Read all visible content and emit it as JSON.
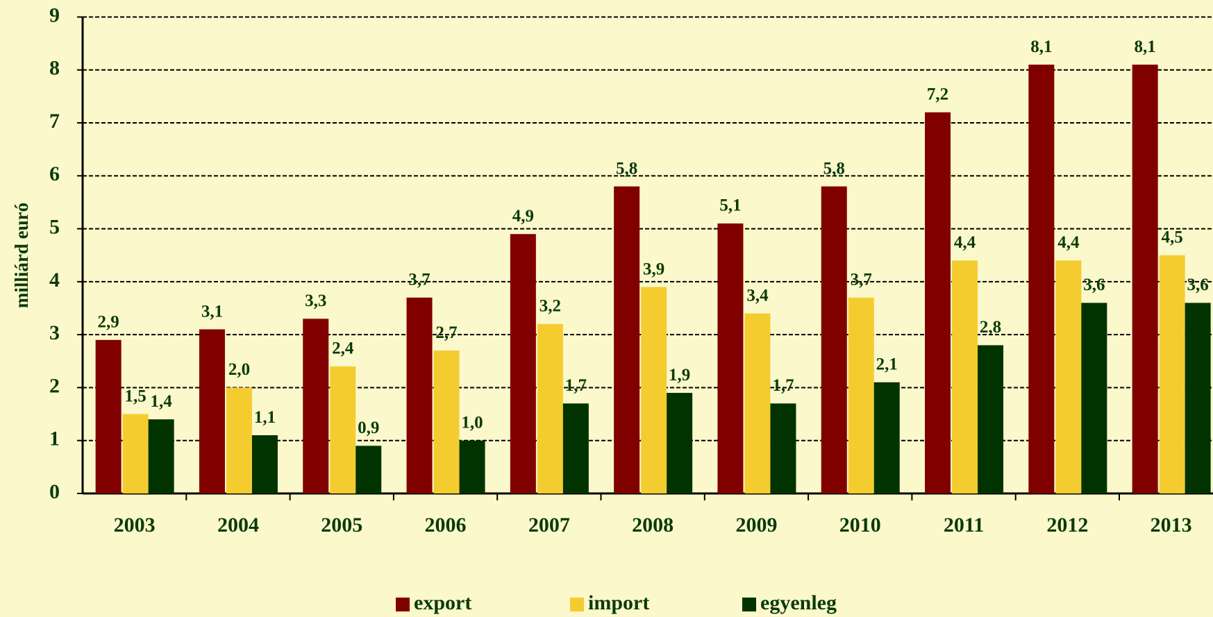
{
  "chart_data": {
    "type": "bar",
    "categories": [
      "2003",
      "2004",
      "2005",
      "2006",
      "2007",
      "2008",
      "2009",
      "2010",
      "2011",
      "2012",
      "2013"
    ],
    "y_label": "milliárd euró",
    "series": [
      {
        "name": "export",
        "color": "#800000",
        "values": [
          2.9,
          3.1,
          3.3,
          3.7,
          4.9,
          5.8,
          5.1,
          5.8,
          7.2,
          8.1,
          8.1
        ],
        "value_labels": [
          "2,9",
          "3,1",
          "3,3",
          "3,7",
          "4,9",
          "5,8",
          "5,1",
          "5,8",
          "7,2",
          "8,1",
          "8,1"
        ]
      },
      {
        "name": "import",
        "color": "#f5cc30",
        "values": [
          1.5,
          2.0,
          2.4,
          2.7,
          3.2,
          3.9,
          3.4,
          3.7,
          4.4,
          4.4,
          4.5
        ],
        "value_labels": [
          "1,5",
          "2,0",
          "2,4",
          "2,7",
          "3,2",
          "3,9",
          "3,4",
          "3,7",
          "4,4",
          "4,4",
          "4,5"
        ]
      },
      {
        "name": "egyenleg",
        "color": "#003300",
        "values": [
          1.4,
          1.1,
          0.9,
          1.0,
          1.7,
          1.9,
          1.7,
          2.1,
          2.8,
          3.6,
          3.6
        ],
        "value_labels": [
          "1,4",
          "1,1",
          "0,9",
          "1,0",
          "1,7",
          "1,9",
          "1,7",
          "2,1",
          "2,8",
          "3,6",
          "3,6"
        ]
      }
    ],
    "ylim": [
      0,
      9
    ],
    "yticks": [
      0,
      1,
      2,
      3,
      4,
      5,
      6,
      7,
      8,
      9
    ],
    "grid": true,
    "legend": "bottom"
  }
}
